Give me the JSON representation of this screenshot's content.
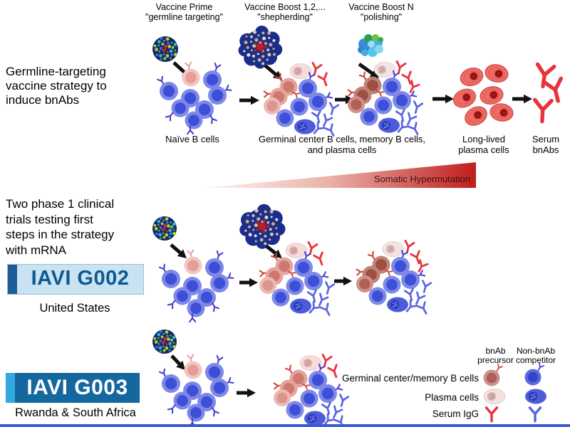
{
  "figure": {
    "strategy": {
      "title_lines": [
        "Germline-targeting",
        "vaccine strategy to",
        "induce bnAbs"
      ],
      "stages": [
        {
          "name": "Vaccine Prime",
          "quote": "\"germline targeting\""
        },
        {
          "name": "Vaccine Boost 1,2,...",
          "quote": "\"shepherding\""
        },
        {
          "name": "Vaccine Boost N",
          "quote": "\"polishing\""
        }
      ],
      "labels": {
        "naive": "Naïve B cells",
        "germinal_lines": [
          "Germinal center B cells, memory B cells,",
          "and plasma cells"
        ],
        "long_lived_lines": [
          "Long-lived",
          "plasma cells"
        ],
        "serum_lines": [
          "Serum",
          "bnAbs"
        ],
        "shm": "Somatic Hypermutation"
      }
    },
    "trials": {
      "title_lines": [
        "Two phase 1 clinical",
        "trials testing first",
        "steps in the strategy",
        "with mRNA"
      ],
      "items": [
        {
          "logo": "IAVI G002",
          "location": "United States"
        },
        {
          "logo": "IAVI G003",
          "location": "Rwanda & South Africa"
        }
      ]
    },
    "legend": {
      "columns": [
        {
          "lines": [
            "bnAb",
            "precursor"
          ]
        },
        {
          "lines": [
            "Non-bnAb",
            "competitor"
          ]
        }
      ],
      "rows": [
        "Germinal center/memory B cells",
        "Plasma cells",
        "Serum IgG"
      ]
    },
    "colors": {
      "bnab_red": "#e8333b",
      "competitor_blue": "#5864e0",
      "naive_cell_blue": "#7d88e8",
      "naive_cell_nucleus": "#3d4fd6",
      "precursor_pink": "#f2c6c2",
      "long_lived_plasma_red": "#ee6b65",
      "shm_gradient_red": "#c01d1d",
      "g002_box_fill": "#c9e3f3",
      "g002_text_blue": "#0f5990",
      "g002_bar_blue": "#1d5d95",
      "g003_box_fill": "#14679f",
      "g003_accent_blue": "#33a7e0",
      "bottom_rule_blue": "#3c5cd8"
    }
  }
}
